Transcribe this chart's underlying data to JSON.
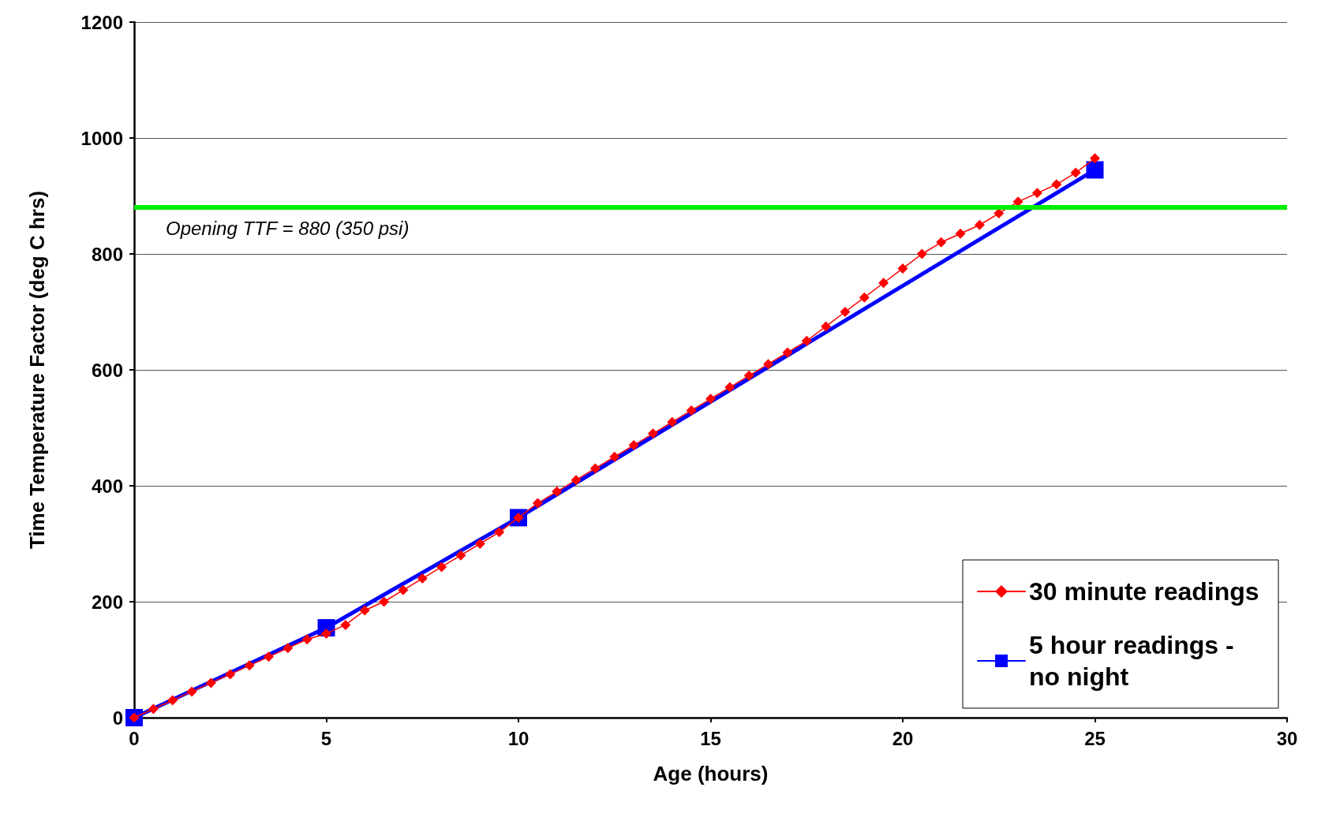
{
  "chart_data": {
    "type": "line",
    "xlabel": "Age (hours)",
    "ylabel": "Time Temperature Factor (deg C hrs)",
    "xlim": [
      0,
      30
    ],
    "xticks": [
      0,
      5,
      10,
      15,
      20,
      25,
      30
    ],
    "ylim": [
      0,
      1200
    ],
    "yticks": [
      0,
      200,
      400,
      600,
      800,
      1000,
      1200
    ],
    "grid": "y",
    "legend": "bottom right",
    "series": [
      {
        "name": "30 minute readings",
        "color": "#ff0000",
        "marker": "diamond",
        "x": [
          0,
          0.5,
          1,
          1.5,
          2,
          2.5,
          3,
          3.5,
          4,
          4.5,
          5,
          5.5,
          6,
          6.5,
          7,
          7.5,
          8,
          8.5,
          9,
          9.5,
          10,
          10.5,
          11,
          11.5,
          12,
          12.5,
          13,
          13.5,
          14,
          14.5,
          15,
          15.5,
          16,
          16.5,
          17,
          17.5,
          18,
          18.5,
          19,
          19.5,
          20,
          20.5,
          21,
          21.5,
          22,
          22.5,
          23,
          23.5,
          24,
          24.5,
          25
        ],
        "values": [
          0,
          15,
          30,
          45,
          60,
          75,
          90,
          105,
          120,
          135,
          145,
          160,
          185,
          200,
          220,
          240,
          260,
          280,
          300,
          320,
          345,
          370,
          390,
          410,
          430,
          450,
          470,
          490,
          510,
          530,
          550,
          570,
          590,
          610,
          630,
          650,
          675,
          700,
          725,
          750,
          775,
          800,
          820,
          835,
          850,
          870,
          890,
          905,
          920,
          940,
          965
        ]
      },
      {
        "name": "5 hour readings - no night",
        "color": "#0000ff",
        "marker": "square",
        "x": [
          0,
          5,
          10,
          25
        ],
        "values": [
          0,
          155,
          345,
          945
        ]
      }
    ],
    "ref_lines": [
      {
        "axis": "y",
        "value": 880,
        "label": "Opening TTF = 880 (350 psi)",
        "color": "#00ee00"
      }
    ]
  }
}
